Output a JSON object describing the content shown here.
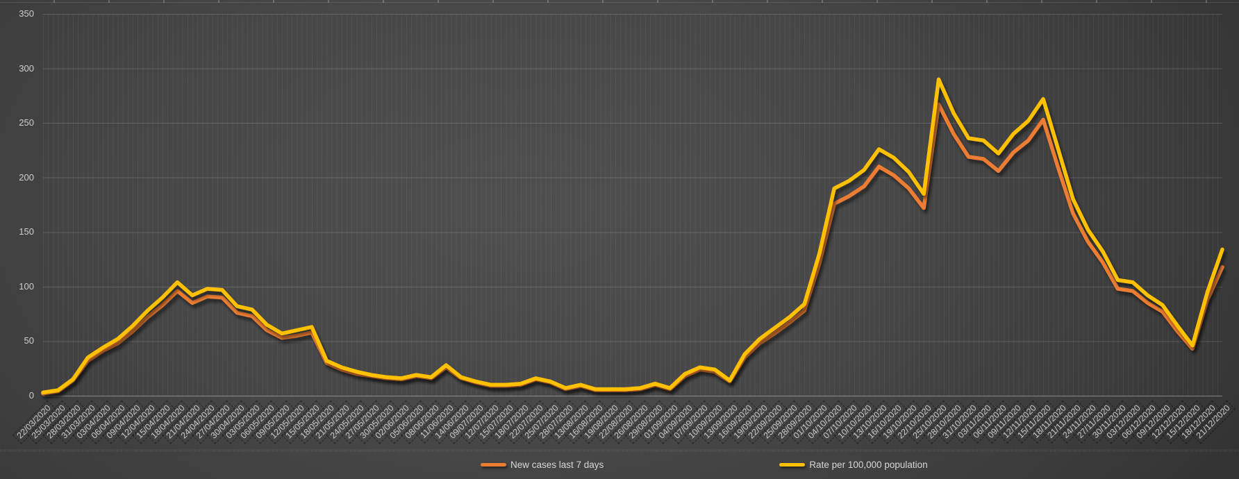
{
  "chart_data": {
    "type": "line",
    "title": "",
    "xlabel": "",
    "ylabel": "",
    "y_axis": {
      "min": 0,
      "max": 350,
      "step": 50,
      "ticks": [
        0,
        50,
        100,
        150,
        200,
        250,
        300,
        350
      ]
    },
    "grid": {
      "horizontal_major": true,
      "vertical_minor_per_category": true
    },
    "legend_position": "bottom-center",
    "categories": [
      "22/03/2020",
      "25/03/2020",
      "28/03/2020",
      "31/03/2020",
      "03/04/2020",
      "06/04/2020",
      "09/04/2020",
      "12/04/2020",
      "15/04/2020",
      "18/04/2020",
      "21/04/2020",
      "24/04/2020",
      "27/04/2020",
      "30/04/2020",
      "03/05/2020",
      "06/05/2020",
      "09/05/2020",
      "12/05/2020",
      "15/05/2020",
      "18/05/2020",
      "21/05/2020",
      "24/05/2020",
      "27/05/2020",
      "30/05/2020",
      "02/06/2020",
      "05/06/2020",
      "08/06/2020",
      "11/06/2020",
      "14/06/2020",
      "09/07/2020",
      "12/07/2020",
      "15/07/2020",
      "18/07/2020",
      "22/07/2020",
      "25/07/2020",
      "28/07/2020",
      "13/08/2020",
      "16/08/2020",
      "19/08/2020",
      "22/08/2020",
      "26/08/2020",
      "29/08/2020",
      "01/09/2020",
      "04/09/2020",
      "07/09/2020",
      "10/09/2020",
      "13/09/2020",
      "16/09/2020",
      "19/09/2020",
      "22/09/2020",
      "25/09/2020",
      "28/09/2020",
      "01/10/2020",
      "04/10/2020",
      "07/10/2020",
      "10/10/2020",
      "13/10/2020",
      "16/10/2020",
      "19/10/2020",
      "22/10/2020",
      "25/10/2020",
      "28/10/2020",
      "31/10/2020",
      "03/11/2020",
      "06/11/2020",
      "09/11/2020",
      "12/11/2020",
      "15/11/2020",
      "18/11/2020",
      "21/11/2020",
      "24/11/2020",
      "27/11/2020",
      "30/11/2020",
      "03/12/2020",
      "06/12/2020",
      "09/12/2020",
      "12/12/2020",
      "15/12/2020",
      "18/12/2020",
      "21/12/2020"
    ],
    "series": [
      {
        "name": "New cases last 7 days",
        "color": "#ED7D31",
        "values": [
          2,
          4,
          14,
          32,
          41,
          48,
          59,
          72,
          83,
          96,
          85,
          91,
          90,
          76,
          73,
          60,
          53,
          55,
          58,
          30,
          24,
          20,
          18,
          16,
          15,
          18,
          16,
          26,
          16,
          12,
          9,
          9,
          10,
          15,
          12,
          6,
          9,
          5,
          5,
          5,
          6,
          10,
          6,
          18,
          24,
          22,
          13,
          35,
          48,
          57,
          67,
          78,
          121,
          176,
          183,
          192,
          210,
          202,
          190,
          172,
          267,
          240,
          219,
          217,
          206,
          223,
          234,
          253,
          209,
          167,
          141,
          122,
          98,
          96,
          85,
          77,
          59,
          43,
          88,
          118
        ]
      },
      {
        "name": "Rate per 100,000 population",
        "color": "#FFC000",
        "values": [
          3,
          5,
          15,
          35,
          44,
          52,
          64,
          78,
          90,
          104,
          92,
          98,
          97,
          82,
          79,
          65,
          57,
          60,
          63,
          32,
          26,
          22,
          19,
          17,
          16,
          19,
          17,
          28,
          17,
          13,
          10,
          10,
          11,
          16,
          13,
          7,
          10,
          6,
          6,
          6,
          7,
          11,
          7,
          20,
          26,
          24,
          14,
          38,
          52,
          62,
          72,
          84,
          130,
          190,
          197,
          207,
          226,
          218,
          205,
          185,
          290,
          259,
          236,
          234,
          222,
          240,
          252,
          272,
          226,
          180,
          152,
          132,
          106,
          104,
          92,
          83,
          64,
          46,
          95,
          134
        ]
      }
    ]
  },
  "legend": {
    "items": [
      {
        "label": "New cases last 7 days",
        "color": "#ED7D31"
      },
      {
        "label": "Rate per 100,000 population",
        "color": "#FFC000"
      }
    ]
  }
}
